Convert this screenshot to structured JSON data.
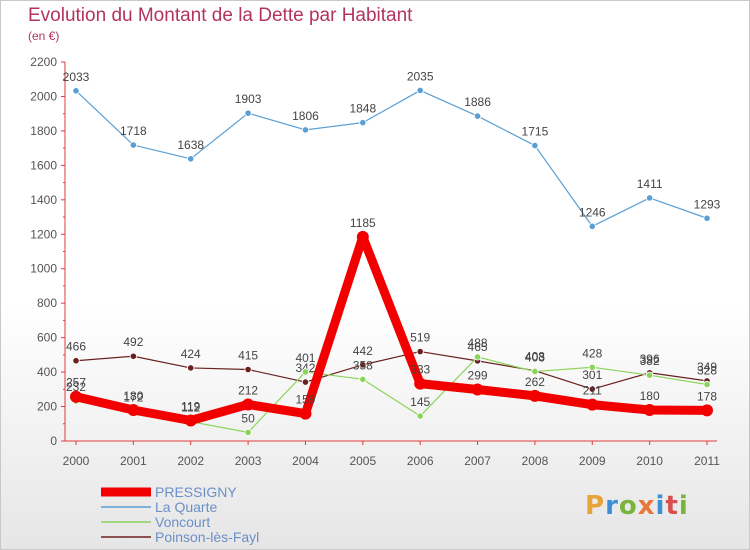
{
  "chart_data": {
    "type": "line",
    "title": "Evolution du Montant de la Dette par Habitant",
    "subtitle": "(en €)",
    "xlabel": "",
    "ylabel": "",
    "ylim": [
      0,
      2200
    ],
    "yticks": [
      0,
      200,
      400,
      600,
      800,
      1000,
      1200,
      1400,
      1600,
      1800,
      2000,
      2200
    ],
    "categories": [
      "2000",
      "2001",
      "2002",
      "2003",
      "2004",
      "2005",
      "2006",
      "2007",
      "2008",
      "2009",
      "2010",
      "2011"
    ],
    "grid": false,
    "legend_position": "bottom-left",
    "series": [
      {
        "name": "PRESSIGNY",
        "color": "#f20000",
        "values": [
          257,
          180,
          119,
          212,
          159,
          1185,
          333,
          299,
          262,
          211,
          180,
          178
        ]
      },
      {
        "name": "La Quarte",
        "color": "#5a9fd4",
        "values": [
          2033,
          1718,
          1638,
          1903,
          1806,
          1848,
          2035,
          1886,
          1715,
          1246,
          1411,
          1293
        ]
      },
      {
        "name": "Voncourt",
        "color": "#8bd45a",
        "values": [
          232,
          172,
          112,
          50,
          401,
          358,
          145,
          488,
          403,
          428,
          382,
          328
        ]
      },
      {
        "name": "Poinson-lès-Fayl",
        "color": "#6b2020",
        "values": [
          466,
          492,
          424,
          415,
          342,
          442,
          519,
          465,
          408,
          301,
          396,
          349
        ]
      }
    ]
  },
  "brand": {
    "letters": [
      "P",
      "r",
      "o",
      "x",
      "i",
      "t",
      "i"
    ]
  }
}
